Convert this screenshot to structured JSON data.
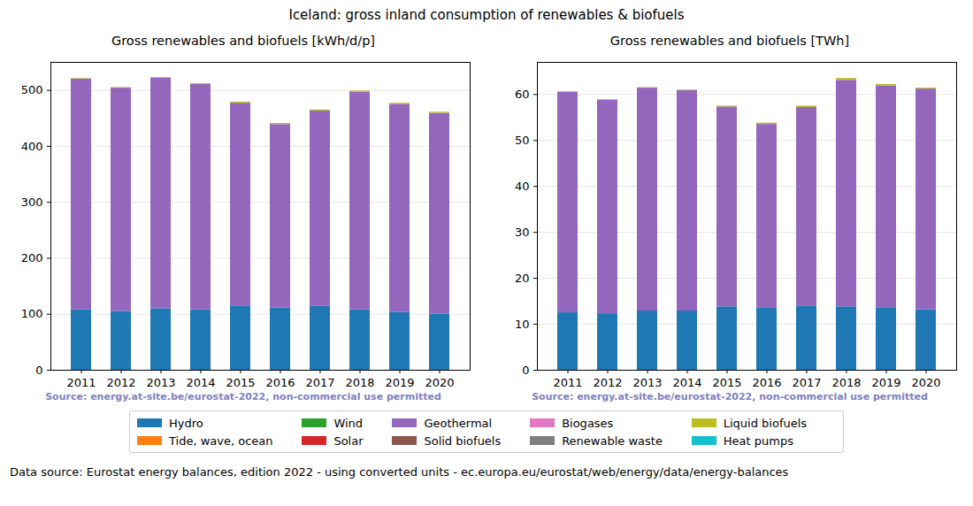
{
  "title": "Iceland: gross inland consumption of renewables & biofuels",
  "caption": "Data source: Eurostat energy balances, edition 2022 - using converted units - ec.europa.eu/eurostat/web/energy/data/energy-balances",
  "chart_data": [
    {
      "type": "bar",
      "stacked": true,
      "grid": true,
      "legend": "bottom",
      "title": "Gross renewables and biofuels [kWh/d/p]",
      "annotation": "Source: energy.at-site.be/eurostat-2022, non-commercial use permitted",
      "categories": [
        "2011",
        "2012",
        "2013",
        "2014",
        "2015",
        "2016",
        "2017",
        "2018",
        "2019",
        "2020"
      ],
      "ylim": [
        0,
        550
      ],
      "yticks": [
        0,
        100,
        200,
        300,
        400,
        500
      ],
      "series": [
        {
          "name": "Hydro",
          "color": "#1f77b4",
          "values": [
            108,
            105,
            110,
            108,
            115,
            111,
            114,
            108,
            103,
            100
          ]
        },
        {
          "name": "Tide, wave, ocean",
          "color": "#ff7f0e",
          "values": [
            0,
            0,
            0,
            0,
            0,
            0,
            0,
            0,
            0,
            0
          ]
        },
        {
          "name": "Wind",
          "color": "#2ca02c",
          "values": [
            0,
            0,
            0,
            0,
            0,
            0,
            0,
            0,
            0,
            0
          ]
        },
        {
          "name": "Solar",
          "color": "#d62728",
          "values": [
            0,
            0,
            0,
            0,
            0,
            0,
            0,
            0,
            0,
            0
          ]
        },
        {
          "name": "Geothermal",
          "color": "#9467bd",
          "values": [
            412,
            399,
            412,
            403,
            362,
            328,
            349,
            389,
            372,
            359
          ]
        },
        {
          "name": "Solid biofuels",
          "color": "#8c564b",
          "values": [
            0,
            0,
            0,
            0,
            0,
            0,
            0,
            0,
            0,
            0
          ]
        },
        {
          "name": "Biogases",
          "color": "#e377c2",
          "values": [
            0,
            0,
            0,
            0,
            0,
            0,
            0,
            0,
            0,
            0
          ]
        },
        {
          "name": "Renewable waste",
          "color": "#7f7f7f",
          "values": [
            0,
            0,
            0,
            0,
            0,
            0,
            0,
            0,
            0,
            0
          ]
        },
        {
          "name": "Liquid biofuels",
          "color": "#bcbd22",
          "values": [
            1,
            1,
            1,
            1,
            2,
            2,
            2,
            2,
            2,
            2
          ]
        },
        {
          "name": "Heat pumps",
          "color": "#17becf",
          "values": [
            0,
            0,
            0,
            0,
            0,
            0,
            0,
            0,
            0,
            0
          ]
        }
      ]
    },
    {
      "type": "bar",
      "stacked": true,
      "grid": true,
      "legend": "bottom",
      "title": "Gross renewables and biofuels [TWh]",
      "annotation": "Source: energy.at-site.be/eurostat-2022, non-commercial use permitted",
      "categories": [
        "2011",
        "2012",
        "2013",
        "2014",
        "2015",
        "2016",
        "2017",
        "2018",
        "2019",
        "2020"
      ],
      "ylim": [
        0,
        67
      ],
      "yticks": [
        0,
        10,
        20,
        30,
        40,
        50,
        60
      ],
      "series": [
        {
          "name": "Hydro",
          "color": "#1f77b4",
          "values": [
            12.5,
            12.3,
            12.9,
            12.9,
            13.8,
            13.5,
            14.0,
            13.8,
            13.5,
            13.2
          ]
        },
        {
          "name": "Tide, wave, ocean",
          "color": "#ff7f0e",
          "values": [
            0,
            0,
            0,
            0,
            0,
            0,
            0,
            0,
            0,
            0
          ]
        },
        {
          "name": "Wind",
          "color": "#2ca02c",
          "values": [
            0,
            0,
            0,
            0,
            0,
            0,
            0,
            0,
            0,
            0
          ]
        },
        {
          "name": "Solar",
          "color": "#d62728",
          "values": [
            0,
            0,
            0,
            0,
            0,
            0,
            0,
            0,
            0,
            0
          ]
        },
        {
          "name": "Geothermal",
          "color": "#9467bd",
          "values": [
            48.0,
            46.5,
            48.5,
            48.0,
            43.5,
            40.0,
            43.2,
            49.3,
            48.4,
            48.0
          ]
        },
        {
          "name": "Solid biofuels",
          "color": "#8c564b",
          "values": [
            0,
            0,
            0,
            0,
            0,
            0,
            0,
            0,
            0,
            0
          ]
        },
        {
          "name": "Biogases",
          "color": "#e377c2",
          "values": [
            0,
            0,
            0,
            0,
            0,
            0,
            0,
            0,
            0,
            0
          ]
        },
        {
          "name": "Renewable waste",
          "color": "#7f7f7f",
          "values": [
            0,
            0,
            0,
            0,
            0,
            0,
            0,
            0,
            0,
            0
          ]
        },
        {
          "name": "Liquid biofuels",
          "color": "#bcbd22",
          "values": [
            0.1,
            0.1,
            0.1,
            0.1,
            0.2,
            0.3,
            0.3,
            0.4,
            0.3,
            0.2
          ]
        },
        {
          "name": "Heat pumps",
          "color": "#17becf",
          "values": [
            0,
            0,
            0,
            0,
            0,
            0,
            0,
            0,
            0,
            0
          ]
        }
      ]
    }
  ]
}
